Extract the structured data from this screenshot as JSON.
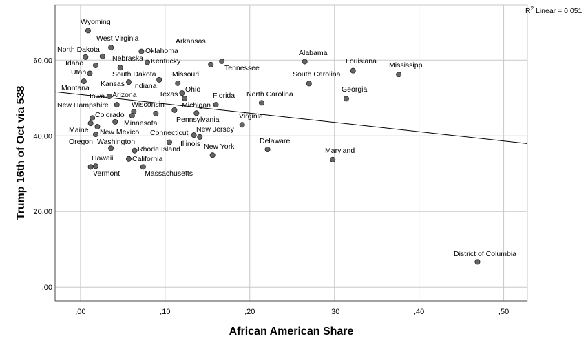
{
  "chart_data": {
    "type": "scatter",
    "title": "",
    "xlabel": "African American Share",
    "ylabel": "Trump 16th of Oct via 538",
    "xlim": [
      -0.03,
      0.528
    ],
    "ylim": [
      -3.6,
      74.6
    ],
    "grid": true,
    "x_ticks": [
      0,
      0.1,
      0.2,
      0.3,
      0.4,
      0.5
    ],
    "x_tick_labels": [
      ",00",
      ",10",
      ",20",
      ",30",
      ",40",
      ",50"
    ],
    "y_ticks": [
      0,
      20,
      40,
      60
    ],
    "y_tick_labels": [
      ",00",
      "20,00",
      "40,00",
      "60,00"
    ],
    "fit_line": {
      "type": "linear",
      "intercept": 50.9,
      "slope": -24.5,
      "annotation": "R² Linear = 0,051",
      "r2_prefix": "R",
      "r2_sup": "2",
      "r2_rest": " Linear = 0,051"
    },
    "points": [
      {
        "label": "Wyoming",
        "x": 0.009,
        "y": 67.8
      },
      {
        "label": "West Virginia",
        "x": 0.036,
        "y": 63.3
      },
      {
        "label": "North Dakota",
        "x": 0.006,
        "y": 60.8
      },
      {
        "label": "Nebraska",
        "x": 0.026,
        "y": 61.0
      },
      {
        "label": "Oklahoma",
        "x": 0.072,
        "y": 62.3
      },
      {
        "label": "Kentucky",
        "x": 0.079,
        "y": 59.4
      },
      {
        "label": "Arkansas",
        "x": 0.154,
        "y": 58.8
      },
      {
        "label": "Tennessee",
        "x": 0.167,
        "y": 59.7
      },
      {
        "label": "Idaho",
        "x": 0.018,
        "y": 58.6
      },
      {
        "label": "Utah",
        "x": 0.011,
        "y": 56.5
      },
      {
        "label": "South Dakota",
        "x": 0.047,
        "y": 58.0
      },
      {
        "label": "Montana",
        "x": 0.004,
        "y": 54.4
      },
      {
        "label": "Kansas",
        "x": 0.057,
        "y": 54.2
      },
      {
        "label": "Indiana",
        "x": 0.093,
        "y": 54.8
      },
      {
        "label": "Missouri",
        "x": 0.115,
        "y": 53.9
      },
      {
        "label": "Alabama",
        "x": 0.265,
        "y": 59.6
      },
      {
        "label": "Louisiana",
        "x": 0.322,
        "y": 57.2
      },
      {
        "label": "Mississippi",
        "x": 0.376,
        "y": 56.2
      },
      {
        "label": "South Carolina",
        "x": 0.27,
        "y": 53.8
      },
      {
        "label": "Georgia",
        "x": 0.314,
        "y": 49.8
      },
      {
        "label": "Iowa",
        "x": 0.034,
        "y": 50.4
      },
      {
        "label": "Arizona",
        "x": 0.043,
        "y": 48.2
      },
      {
        "label": "Ohio",
        "x": 0.12,
        "y": 51.3
      },
      {
        "label": "Texas",
        "x": 0.123,
        "y": 49.9
      },
      {
        "label": "Florida",
        "x": 0.16,
        "y": 48.2
      },
      {
        "label": "North Carolina",
        "x": 0.214,
        "y": 48.7
      },
      {
        "label": "New Hampshire",
        "x": 0.014,
        "y": 44.7
      },
      {
        "label": "Maine",
        "x": 0.012,
        "y": 43.3
      },
      {
        "label": "Colorado",
        "x": 0.041,
        "y": 43.7
      },
      {
        "label": "New Mexico",
        "x": 0.02,
        "y": 42.4
      },
      {
        "label": "Oregon",
        "x": 0.018,
        "y": 40.4
      },
      {
        "label": "Wisconsin",
        "x": 0.063,
        "y": 46.4
      },
      {
        "label": "Minnesota",
        "x": 0.061,
        "y": 45.3
      },
      {
        "label": "",
        "x": 0.089,
        "y": 45.9
      },
      {
        "label": "Pennsylvania",
        "x": 0.111,
        "y": 46.8
      },
      {
        "label": "Michigan",
        "x": 0.137,
        "y": 46.0
      },
      {
        "label": "Virginia",
        "x": 0.191,
        "y": 42.9
      },
      {
        "label": "Connecticut",
        "x": 0.105,
        "y": 38.3
      },
      {
        "label": "New Jersey",
        "x": 0.134,
        "y": 40.2
      },
      {
        "label": "Illinois",
        "x": 0.141,
        "y": 39.7
      },
      {
        "label": "New York",
        "x": 0.156,
        "y": 34.9
      },
      {
        "label": "Delaware",
        "x": 0.221,
        "y": 36.4
      },
      {
        "label": "Maryland",
        "x": 0.298,
        "y": 33.7
      },
      {
        "label": "Washington",
        "x": 0.036,
        "y": 36.7
      },
      {
        "label": "Rhode Island",
        "x": 0.064,
        "y": 36.1
      },
      {
        "label": "California",
        "x": 0.057,
        "y": 33.9
      },
      {
        "label": "Hawaii",
        "x": 0.012,
        "y": 31.8
      },
      {
        "label": "Vermont",
        "x": 0.018,
        "y": 32.0
      },
      {
        "label": "Massachusetts",
        "x": 0.074,
        "y": 31.8
      },
      {
        "label": "District of Columbia",
        "x": 0.469,
        "y": 6.7
      }
    ]
  },
  "colors": {
    "point": "#666666",
    "grid": "#c8c8c8",
    "line": "#000000"
  }
}
